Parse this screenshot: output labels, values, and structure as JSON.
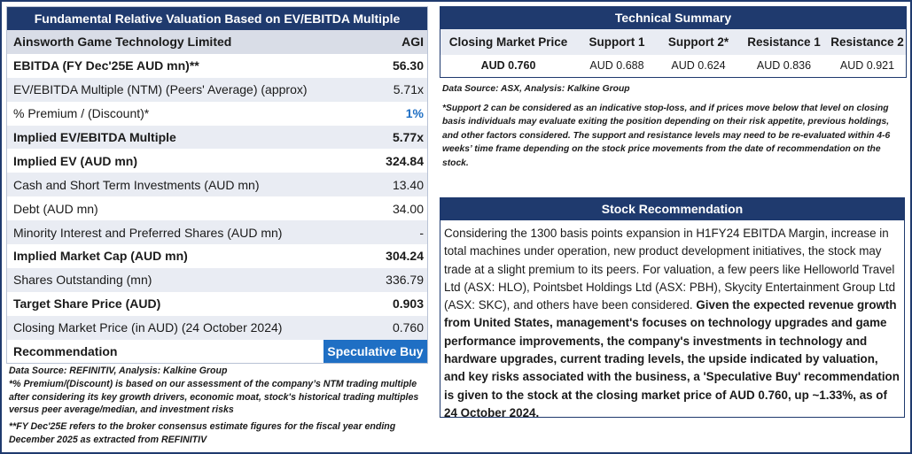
{
  "valuation": {
    "title": "Fundamental Relative Valuation Based on EV/EBITDA Multiple",
    "company": {
      "label": "Ainsworth Game Technology Limited",
      "value": "AGI"
    },
    "rows": [
      {
        "label": "EBITDA (FY Dec'25E AUD mn)**",
        "value": "56.30"
      },
      {
        "label": "EV/EBITDA Multiple (NTM)  (Peers' Average) (approx)",
        "value": "5.71x"
      },
      {
        "label": "% Premium / (Discount)*",
        "value": "1%"
      },
      {
        "label": "Implied EV/EBITDA Multiple",
        "value": "5.77x"
      },
      {
        "label": "Implied EV (AUD mn)",
        "value": "324.84"
      },
      {
        "label": "Cash and Short Term Investments (AUD mn)",
        "value": "13.40"
      },
      {
        "label": "Debt (AUD mn)",
        "value": "34.00"
      },
      {
        "label": "Minority Interest and Preferred Shares (AUD mn)",
        "value": "-"
      },
      {
        "label": "Implied Market Cap (AUD mn)",
        "value": "304.24"
      },
      {
        "label": "Shares Outstanding (mn)",
        "value": "336.79"
      },
      {
        "label": "Target Share Price (AUD)",
        "value": "0.903"
      },
      {
        "label": "Closing Market Price (in AUD) (24 October 2024)",
        "value": "0.760"
      }
    ],
    "recommendation": {
      "label": "Recommendation",
      "value": "Speculative Buy"
    },
    "notes": {
      "source": "Data Source: REFINITIV, Analysis: Kalkine Group",
      "premium": "*% Premium/(Discount) is based on our assessment of the company’s NTM trading multiple after considering its key growth drivers, economic moat, stock's historical trading multiples versus peer average/median, and investment risks",
      "fy": "**FY Dec'25E refers to the broker consensus estimate figures for the fiscal year ending December 2025  as extracted from REFINITIV"
    }
  },
  "technical": {
    "title": "Technical Summary",
    "headers": [
      "Closing Market Price",
      "Support 1",
      "Support 2*",
      "Resistance 1",
      "Resistance 2"
    ],
    "values": [
      "AUD 0.760",
      "AUD 0.688",
      "AUD 0.624",
      "AUD 0.836",
      "AUD 0.921"
    ],
    "source": "Data Source: ASX, Analysis: Kalkine Group",
    "note": "*Support 2 can be considered as an indicative stop-loss, and if prices move below that level on closing basis individuals may evaluate exiting the position depending on their risk appetite, previous holdings, and other factors considered. The support and resistance levels may need to be re-evaluated within 4-6 weeks’ time frame depending on the stock price movements from the date of recommendation on the stock."
  },
  "recommendation": {
    "title": "Stock Recommendation",
    "text_plain": "Considering the 1300 basis points expansion in H1FY24 EBITDA Margin, increase in total machines under operation, new product development initiatives, the stock may trade at a slight premium to its peers. For valuation, a few peers like Helloworld Travel Ltd (ASX: HLO), Pointsbet Holdings Ltd (ASX: PBH), Skycity Entertainment Group Ltd (ASX: SKC), and others have been considered.",
    "text_bold": "Given the expected revenue growth from United States, management's focuses on technology upgrades and game performance improvements, the company's investments in technology and hardware upgrades, current trading levels, the upside indicated by valuation, and key risks associated with the business, a 'Speculative Buy' recommendation is given to the stock at the closing market price of AUD 0.760, up ~1.33%, as of 24 October 2024."
  }
}
